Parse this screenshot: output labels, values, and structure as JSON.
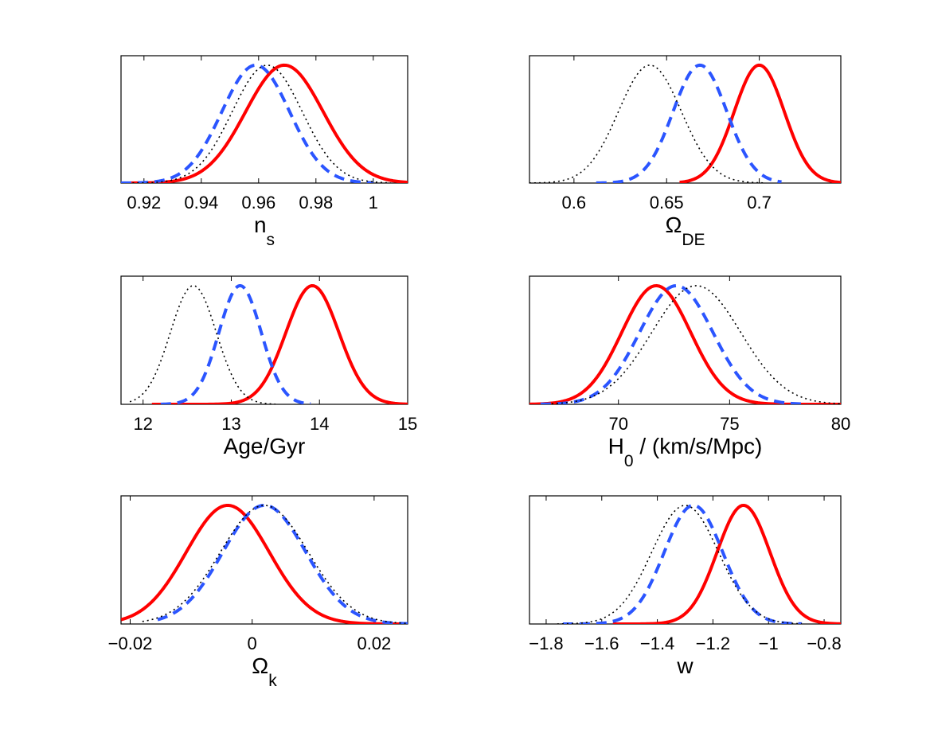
{
  "figure": {
    "series_styles": [
      {
        "name": "solid",
        "color": "#ff0000",
        "dash": "solid"
      },
      {
        "name": "dashed",
        "color": "#2b55ff",
        "dash": "dashed"
      },
      {
        "name": "dotted",
        "color": "#000000",
        "dash": "dotted"
      }
    ]
  },
  "chart_data": [
    {
      "type": "line",
      "xlabel": "n",
      "xlabel_sub": "s",
      "xlim": [
        0.912,
        1.012
      ],
      "ylim": [
        0,
        1.08
      ],
      "xticks": [
        0.92,
        0.94,
        0.96,
        0.98,
        1
      ],
      "tick_labels": [
        "0.92",
        "0.94",
        "0.96",
        "0.98",
        "1"
      ],
      "series": [
        {
          "name": "solid",
          "mean": 0.969,
          "sigma": 0.0135,
          "range": [
            0.912,
            1.012
          ]
        },
        {
          "name": "dashed",
          "mean": 0.959,
          "sigma": 0.0118,
          "range": [
            0.912,
            1.0
          ]
        },
        {
          "name": "dotted",
          "mean": 0.963,
          "sigma": 0.0122,
          "range": [
            0.916,
            1.006
          ]
        }
      ]
    },
    {
      "type": "line",
      "xlabel": "Ω",
      "xlabel_sub": "DE",
      "xlim": [
        0.576,
        0.744
      ],
      "ylim": [
        0,
        1.08
      ],
      "xticks": [
        0.6,
        0.65,
        0.7
      ],
      "tick_labels": [
        "0.6",
        "0.65",
        "0.7"
      ],
      "series": [
        {
          "name": "solid",
          "mean": 0.7,
          "sigma": 0.0135,
          "range": [
            0.657,
            0.744
          ]
        },
        {
          "name": "dashed",
          "mean": 0.668,
          "sigma": 0.0145,
          "range": [
            0.612,
            0.712
          ]
        },
        {
          "name": "dotted",
          "mean": 0.641,
          "sigma": 0.017,
          "range": [
            0.576,
            0.702
          ]
        }
      ]
    },
    {
      "type": "line",
      "xlabel": "Age/Gyr",
      "xlabel_sub": "",
      "xlim": [
        11.75,
        15.0
      ],
      "ylim": [
        0,
        1.08
      ],
      "xticks": [
        12,
        13,
        14,
        15
      ],
      "tick_labels": [
        "12",
        "13",
        "14",
        "15"
      ],
      "series": [
        {
          "name": "solid",
          "mean": 13.92,
          "sigma": 0.3,
          "range": [
            12.1,
            15.0
          ]
        },
        {
          "name": "dashed",
          "mean": 13.1,
          "sigma": 0.24,
          "range": [
            12.2,
            13.9
          ]
        },
        {
          "name": "dotted",
          "mean": 12.57,
          "sigma": 0.26,
          "range": [
            11.85,
            13.5
          ]
        }
      ]
    },
    {
      "type": "line",
      "xlabel": "H",
      "xlabel_sub": "0",
      "xlabel_rest": " / (km/s/Mpc)",
      "xlim": [
        66.0,
        80.0
      ],
      "ylim": [
        0,
        1.08
      ],
      "xticks": [
        70,
        75,
        80
      ],
      "tick_labels": [
        "70",
        "75",
        "80"
      ],
      "series": [
        {
          "name": "solid",
          "mean": 71.7,
          "sigma": 1.55,
          "range": [
            66.0,
            80.0
          ]
        },
        {
          "name": "dashed",
          "mean": 72.6,
          "sigma": 1.65,
          "range": [
            66.5,
            78.5
          ]
        },
        {
          "name": "dotted",
          "mean": 73.5,
          "sigma": 2.0,
          "range": [
            67.0,
            80.0
          ]
        }
      ]
    },
    {
      "type": "line",
      "xlabel": "Ω",
      "xlabel_sub": "k",
      "xlim": [
        -0.0215,
        0.0255
      ],
      "ylim": [
        0,
        1.08
      ],
      "xticks": [
        -0.02,
        0,
        0.02
      ],
      "tick_labels": [
        "−0.02",
        "0",
        "0.02"
      ],
      "series": [
        {
          "name": "solid",
          "mean": -0.004,
          "sigma": 0.0068,
          "range": [
            -0.0215,
            0.0255
          ]
        },
        {
          "name": "dashed",
          "mean": 0.002,
          "sigma": 0.0068,
          "range": [
            -0.0155,
            0.0255
          ]
        },
        {
          "name": "dotted",
          "mean": 0.002,
          "sigma": 0.0072,
          "range": [
            -0.018,
            0.0255
          ]
        }
      ]
    },
    {
      "type": "line",
      "xlabel": "w",
      "xlabel_sub": "",
      "xlim": [
        -1.86,
        -0.74
      ],
      "ylim": [
        0,
        1.08
      ],
      "xticks": [
        -1.8,
        -1.6,
        -1.4,
        -1.2,
        -1.0,
        -0.8
      ],
      "tick_labels": [
        "−1.8",
        "−1.6",
        "−1.4",
        "−1.2",
        "−1",
        "−0.8"
      ],
      "series": [
        {
          "name": "solid",
          "mean": -1.09,
          "sigma": 0.095,
          "range": [
            -1.56,
            -0.74
          ]
        },
        {
          "name": "dashed",
          "mean": -1.27,
          "sigma": 0.105,
          "range": [
            -1.74,
            -0.88
          ]
        },
        {
          "name": "dotted",
          "mean": -1.3,
          "sigma": 0.12,
          "range": [
            -1.76,
            -0.88
          ]
        }
      ]
    }
  ]
}
